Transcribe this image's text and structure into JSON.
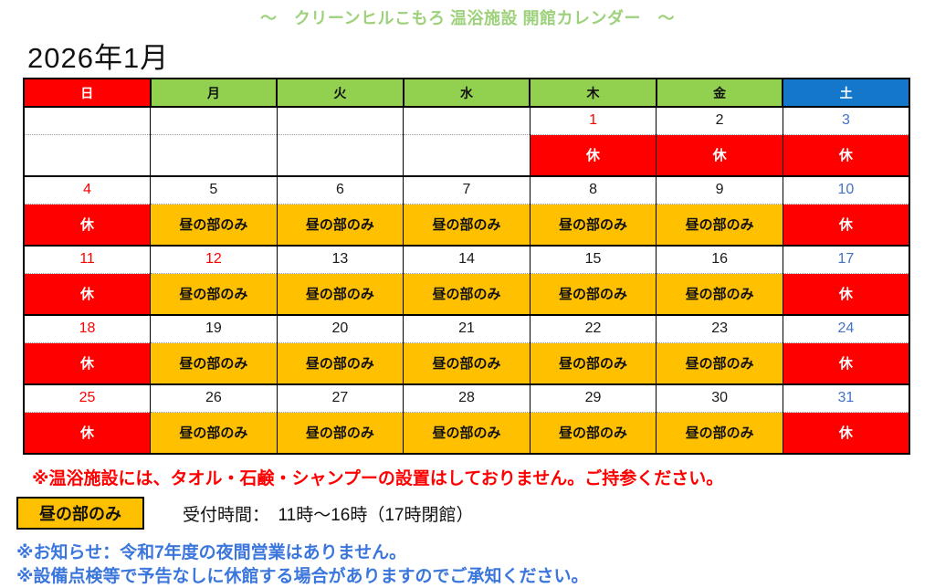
{
  "title": "～　クリーンヒルこもろ 温浴施設 開館カレンダー　～",
  "month_label": "2026年1月",
  "colors": {
    "sunday_header_bg": "#ff0000",
    "weekday_header_bg": "#92d050",
    "saturday_header_bg": "#1577c9",
    "closed_bg": "#ff0000",
    "daytime_bg": "#ffc000",
    "title_green": "#9ed17b",
    "sunday_date": "#ff0000",
    "saturday_date": "#4472c4",
    "note_red": "#ff0000",
    "note_blue": "#3b76dd"
  },
  "weekdays": [
    {
      "label": "日",
      "type": "sunday"
    },
    {
      "label": "月",
      "type": "weekday"
    },
    {
      "label": "火",
      "type": "weekday"
    },
    {
      "label": "水",
      "type": "weekday"
    },
    {
      "label": "木",
      "type": "weekday"
    },
    {
      "label": "金",
      "type": "weekday"
    },
    {
      "label": "土",
      "type": "saturday"
    }
  ],
  "status_labels": {
    "closed": "休",
    "daytime": "昼の部のみ",
    "none": ""
  },
  "weeks": [
    [
      {
        "date": "",
        "date_style": "black",
        "status": "",
        "status_style": "none"
      },
      {
        "date": "",
        "date_style": "black",
        "status": "",
        "status_style": "none"
      },
      {
        "date": "",
        "date_style": "black",
        "status": "",
        "status_style": "none"
      },
      {
        "date": "",
        "date_style": "black",
        "status": "",
        "status_style": "none"
      },
      {
        "date": "1",
        "date_style": "red",
        "status": "休",
        "status_style": "closed"
      },
      {
        "date": "2",
        "date_style": "black",
        "status": "休",
        "status_style": "closed"
      },
      {
        "date": "3",
        "date_style": "blue",
        "status": "休",
        "status_style": "closed"
      }
    ],
    [
      {
        "date": "4",
        "date_style": "red",
        "status": "休",
        "status_style": "closed"
      },
      {
        "date": "5",
        "date_style": "black",
        "status": "昼の部のみ",
        "status_style": "daytime"
      },
      {
        "date": "6",
        "date_style": "black",
        "status": "昼の部のみ",
        "status_style": "daytime"
      },
      {
        "date": "7",
        "date_style": "black",
        "status": "昼の部のみ",
        "status_style": "daytime"
      },
      {
        "date": "8",
        "date_style": "black",
        "status": "昼の部のみ",
        "status_style": "daytime"
      },
      {
        "date": "9",
        "date_style": "black",
        "status": "昼の部のみ",
        "status_style": "daytime"
      },
      {
        "date": "10",
        "date_style": "blue",
        "status": "休",
        "status_style": "closed"
      }
    ],
    [
      {
        "date": "11",
        "date_style": "red",
        "status": "休",
        "status_style": "closed"
      },
      {
        "date": "12",
        "date_style": "red",
        "status": "昼の部のみ",
        "status_style": "daytime"
      },
      {
        "date": "13",
        "date_style": "black",
        "status": "昼の部のみ",
        "status_style": "daytime"
      },
      {
        "date": "14",
        "date_style": "black",
        "status": "昼の部のみ",
        "status_style": "daytime"
      },
      {
        "date": "15",
        "date_style": "black",
        "status": "昼の部のみ",
        "status_style": "daytime"
      },
      {
        "date": "16",
        "date_style": "black",
        "status": "昼の部のみ",
        "status_style": "daytime"
      },
      {
        "date": "17",
        "date_style": "blue",
        "status": "休",
        "status_style": "closed"
      }
    ],
    [
      {
        "date": "18",
        "date_style": "red",
        "status": "休",
        "status_style": "closed"
      },
      {
        "date": "19",
        "date_style": "black",
        "status": "昼の部のみ",
        "status_style": "daytime"
      },
      {
        "date": "20",
        "date_style": "black",
        "status": "昼の部のみ",
        "status_style": "daytime"
      },
      {
        "date": "21",
        "date_style": "black",
        "status": "昼の部のみ",
        "status_style": "daytime"
      },
      {
        "date": "22",
        "date_style": "black",
        "status": "昼の部のみ",
        "status_style": "daytime"
      },
      {
        "date": "23",
        "date_style": "black",
        "status": "昼の部のみ",
        "status_style": "daytime"
      },
      {
        "date": "24",
        "date_style": "blue",
        "status": "休",
        "status_style": "closed"
      }
    ],
    [
      {
        "date": "25",
        "date_style": "red",
        "status": "休",
        "status_style": "closed"
      },
      {
        "date": "26",
        "date_style": "black",
        "status": "昼の部のみ",
        "status_style": "daytime"
      },
      {
        "date": "27",
        "date_style": "black",
        "status": "昼の部のみ",
        "status_style": "daytime"
      },
      {
        "date": "28",
        "date_style": "black",
        "status": "昼の部のみ",
        "status_style": "daytime"
      },
      {
        "date": "29",
        "date_style": "black",
        "status": "昼の部のみ",
        "status_style": "daytime"
      },
      {
        "date": "30",
        "date_style": "black",
        "status": "昼の部のみ",
        "status_style": "daytime"
      },
      {
        "date": "31",
        "date_style": "blue",
        "status": "休",
        "status_style": "closed"
      }
    ]
  ],
  "notes": {
    "towel": "※温浴施設には、タオル・石鹸・シャンプーの設置はしておりません。ご持参ください。",
    "legend_label": "昼の部のみ",
    "reception": "受付時間：　11時～16時（17時閉館）",
    "notice1": "※お知らせ：令和7年度の夜間営業はありません。",
    "notice2": "※設備点検等で予告なしに休館する場合がありますのでご承知ください。"
  }
}
